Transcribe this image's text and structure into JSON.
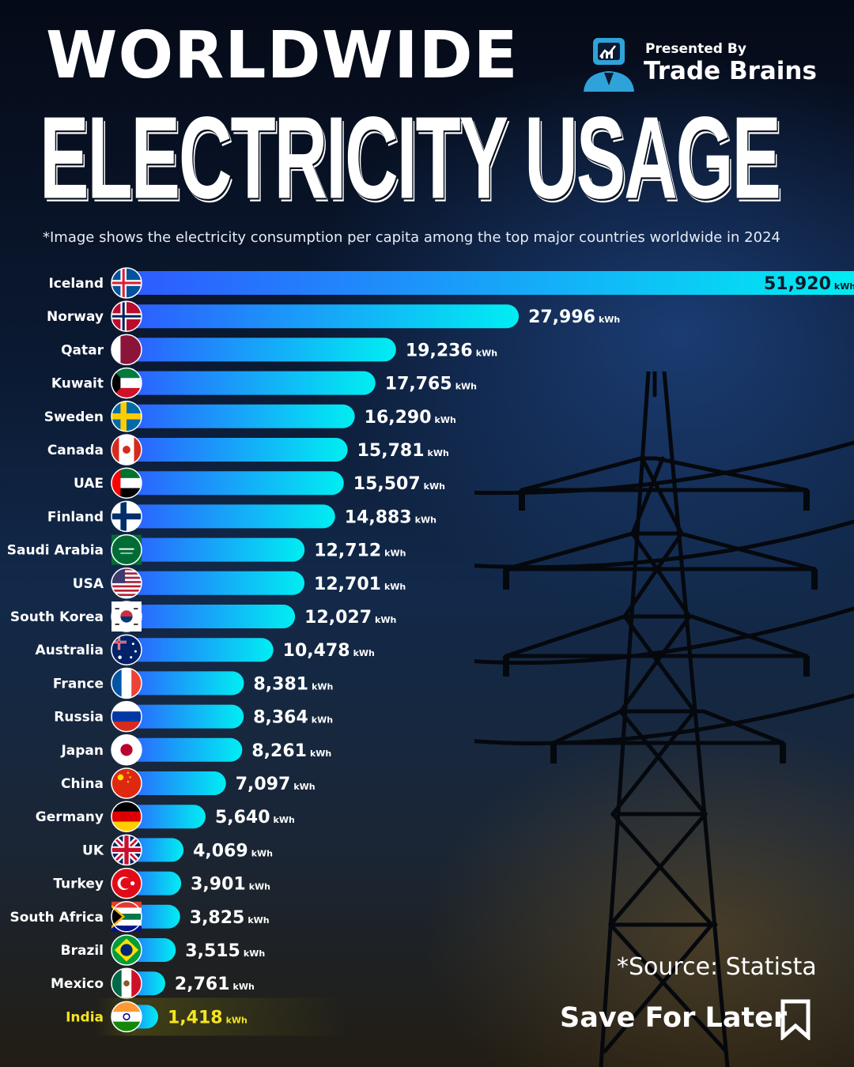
{
  "header": {
    "title_line1": "WORLDWIDE",
    "title_line2": "ELECTRICITY USAGE",
    "subtitle": "*Image shows the electricity consumption per capita among the top major countries worldwide in 2024"
  },
  "brand": {
    "presented_by": "Presented By",
    "name": "Trade Brains",
    "logo_icon": "analyst-chart-icon"
  },
  "footer": {
    "source": "*Source: Statista",
    "save_label": "Save For Later",
    "save_icon": "bookmark-icon"
  },
  "colors": {
    "bar_start": "#2f58ff",
    "bar_end": "#00eef2",
    "highlight": "#f4e521",
    "label": "#ffffff"
  },
  "chart_data": {
    "type": "bar",
    "orientation": "horizontal",
    "unit": "kWh",
    "highlight_category": "India",
    "categories": [
      "Iceland",
      "Norway",
      "Qatar",
      "Kuwait",
      "Sweden",
      "Canada",
      "UAE",
      "Finland",
      "Saudi Arabia",
      "USA",
      "South Korea",
      "Australia",
      "France",
      "Russia",
      "Japan",
      "China",
      "Germany",
      "UK",
      "Turkey",
      "South Africa",
      "Brazil",
      "Mexico",
      "India"
    ],
    "values": [
      51920,
      27996,
      19236,
      17765,
      16290,
      15781,
      15507,
      14883,
      12712,
      12701,
      12027,
      10478,
      8381,
      8364,
      8261,
      7097,
      5640,
      4069,
      3901,
      3825,
      3515,
      2761,
      1418
    ],
    "value_labels": [
      "51,920",
      "27,996",
      "19,236",
      "17,765",
      "16,290",
      "15,781",
      "15,507",
      "14,883",
      "12,712",
      "12,701",
      "12,027",
      "10,478",
      "8,381",
      "8,364",
      "8,261",
      "7,097",
      "5,640",
      "4,069",
      "3,901",
      "3,825",
      "3,515",
      "2,761",
      "1,418"
    ],
    "flag_icons": [
      "iceland-flag-icon",
      "norway-flag-icon",
      "qatar-flag-icon",
      "kuwait-flag-icon",
      "sweden-flag-icon",
      "canada-flag-icon",
      "uae-flag-icon",
      "finland-flag-icon",
      "saudi-arabia-flag-icon",
      "usa-flag-icon",
      "south-korea-flag-icon",
      "australia-flag-icon",
      "france-flag-icon",
      "russia-flag-icon",
      "japan-flag-icon",
      "china-flag-icon",
      "germany-flag-icon",
      "uk-flag-icon",
      "turkey-flag-icon",
      "south-africa-flag-icon",
      "brazil-flag-icon",
      "mexico-flag-icon",
      "india-flag-icon"
    ],
    "title": "Electricity Usage per capita, 2024",
    "xlabel": "kWh",
    "ylabel": "",
    "xlim": [
      0,
      51920
    ]
  }
}
